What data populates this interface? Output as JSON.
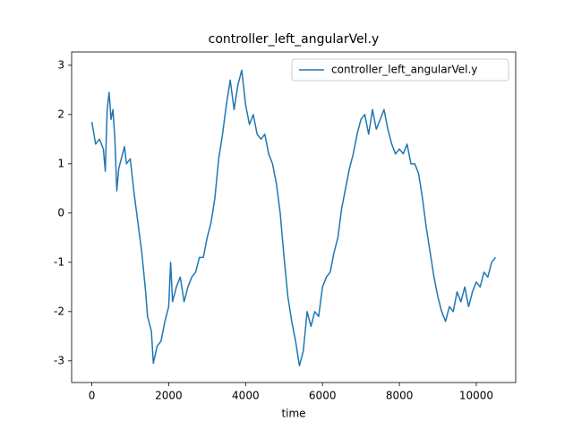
{
  "chart_data": {
    "type": "line",
    "title": "controller_left_angularVel.y",
    "xlabel": "time",
    "x": [
      0,
      100,
      200,
      300,
      350,
      400,
      450,
      500,
      550,
      600,
      650,
      700,
      800,
      850,
      900,
      1000,
      1100,
      1200,
      1300,
      1400,
      1450,
      1550,
      1600,
      1700,
      1800,
      1900,
      2000,
      2050,
      2100,
      2200,
      2300,
      2400,
      2500,
      2600,
      2700,
      2800,
      2900,
      3000,
      3100,
      3200,
      3300,
      3400,
      3500,
      3600,
      3700,
      3800,
      3900,
      4000,
      4100,
      4200,
      4300,
      4400,
      4500,
      4600,
      4700,
      4800,
      4900,
      5000,
      5100,
      5200,
      5300,
      5400,
      5500,
      5600,
      5700,
      5800,
      5900,
      6000,
      6100,
      6200,
      6300,
      6400,
      6500,
      6600,
      6700,
      6800,
      6900,
      7000,
      7100,
      7200,
      7300,
      7400,
      7500,
      7600,
      7700,
      7800,
      7900,
      8000,
      8100,
      8200,
      8300,
      8400,
      8500,
      8600,
      8700,
      8800,
      8900,
      9000,
      9100,
      9200,
      9300,
      9400,
      9500,
      9600,
      9700,
      9800,
      9900,
      10000,
      10100,
      10200,
      10300,
      10400,
      10500
    ],
    "series": [
      {
        "name": "controller_left_angularVel.y",
        "color": "#1f77b4",
        "values": [
          1.85,
          1.4,
          1.5,
          1.3,
          0.85,
          2.1,
          2.45,
          1.9,
          2.1,
          1.5,
          0.45,
          0.9,
          1.2,
          1.35,
          1.0,
          1.1,
          0.4,
          -0.2,
          -0.8,
          -1.6,
          -2.1,
          -2.4,
          -3.05,
          -2.7,
          -2.6,
          -2.2,
          -1.9,
          -1.0,
          -1.8,
          -1.5,
          -1.3,
          -1.8,
          -1.5,
          -1.3,
          -1.2,
          -0.9,
          -0.9,
          -0.5,
          -0.2,
          0.3,
          1.1,
          1.6,
          2.2,
          2.7,
          2.1,
          2.6,
          2.9,
          2.2,
          1.8,
          2.0,
          1.6,
          1.5,
          1.6,
          1.2,
          1.0,
          0.6,
          0.0,
          -0.9,
          -1.7,
          -2.2,
          -2.6,
          -3.1,
          -2.8,
          -2.0,
          -2.3,
          -2.0,
          -2.1,
          -1.5,
          -1.3,
          -1.2,
          -0.8,
          -0.5,
          0.1,
          0.5,
          0.9,
          1.2,
          1.6,
          1.9,
          2.0,
          1.6,
          2.1,
          1.7,
          1.9,
          2.1,
          1.7,
          1.4,
          1.2,
          1.3,
          1.2,
          1.4,
          1.0,
          1.0,
          0.8,
          0.3,
          -0.3,
          -0.8,
          -1.3,
          -1.7,
          -2.0,
          -2.2,
          -1.9,
          -2.0,
          -1.6,
          -1.8,
          -1.5,
          -1.9,
          -1.6,
          -1.4,
          -1.5,
          -1.2,
          -1.3,
          -1.0,
          -0.9
        ]
      }
    ],
    "xlim": [
      -525,
      11025
    ],
    "ylim": [
      -3.44,
      3.27
    ],
    "xticks": [
      0,
      2000,
      4000,
      6000,
      8000,
      10000
    ],
    "yticks": [
      -3,
      -2,
      -1,
      0,
      1,
      2,
      3
    ],
    "legend": "upper right"
  }
}
